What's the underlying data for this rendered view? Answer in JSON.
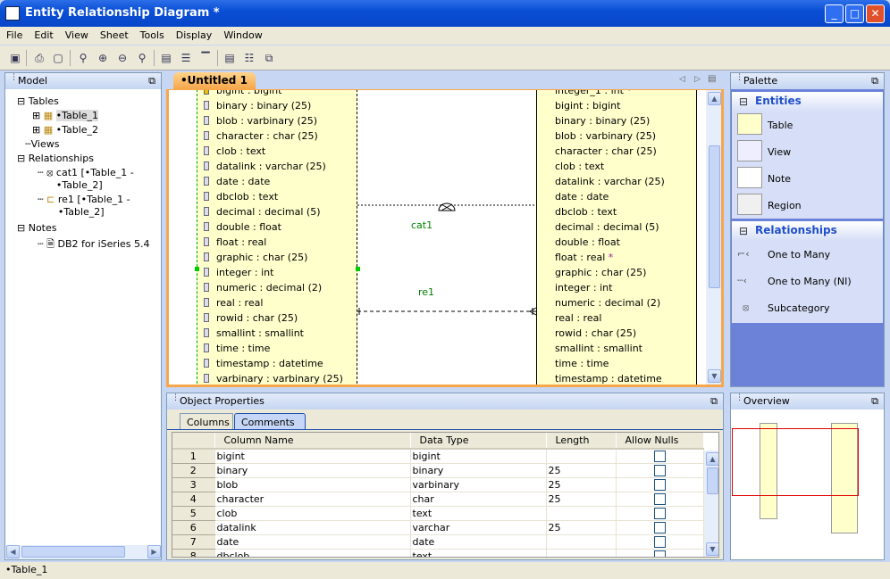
{
  "window": {
    "title": "Entity Relationship Diagram *",
    "minimize": "_",
    "maximize": "□",
    "close": "✕"
  },
  "menu": [
    "File",
    "Edit",
    "View",
    "Sheet",
    "Tools",
    "Display",
    "Window"
  ],
  "toolbar": [
    "save-icon",
    "print-icon",
    "page-setup-icon",
    "zoom-icon",
    "zoom-in-icon",
    "zoom-out-icon",
    "zoom-fit-icon",
    "table-view-icon",
    "table-list-icon",
    "table-header-icon",
    "properties-icon",
    "layout-icon",
    "export-icon"
  ],
  "model": {
    "title": "Model",
    "tree": {
      "tables": "Tables",
      "table1": "•Table_1",
      "table2": "•Table_2",
      "views": "Views",
      "relationships": "Relationships",
      "rel1": "cat1 [•Table_1 - •Table_2]",
      "rel2": "re1 [•Table_1 - •Table_2]",
      "notes": "Notes",
      "note1": "DB2 for iSeries 5.4"
    }
  },
  "editor": {
    "tab": "•Untitled 1",
    "left_table": [
      "bigint : bigint",
      "binary : binary (25)",
      "blob : varbinary (25)",
      "character : char (25)",
      "clob : text",
      "datalink : varchar (25)",
      "date : date",
      "dbclob : text",
      "decimal : decimal (5)",
      "double : float",
      "float : real",
      "graphic : char (25)",
      "integer : int",
      "numeric : decimal (2)",
      "real : real",
      "rowid : char (25)",
      "smallint : smallint",
      "time : time",
      "timestamp : datetime",
      "varbinary : varbinary (25)"
    ],
    "right_table": [
      {
        "t": "integer_1 : int",
        "s": "*"
      },
      {
        "t": "bigint : bigint"
      },
      {
        "t": "binary : binary (25)"
      },
      {
        "t": "blob : varbinary (25)"
      },
      {
        "t": "character : char (25)"
      },
      {
        "t": "clob : text"
      },
      {
        "t": "datalink : varchar (25)"
      },
      {
        "t": "date : date"
      },
      {
        "t": "dbclob : text"
      },
      {
        "t": "decimal : decimal (5)"
      },
      {
        "t": "double : float"
      },
      {
        "t": "float : real",
        "s": "*"
      },
      {
        "t": "graphic : char (25)"
      },
      {
        "t": "integer : int"
      },
      {
        "t": "numeric : decimal (2)"
      },
      {
        "t": "real : real"
      },
      {
        "t": "rowid : char (25)"
      },
      {
        "t": "smallint : smallint"
      },
      {
        "t": "time : time"
      },
      {
        "t": "timestamp : datetime"
      }
    ],
    "rel_labels": {
      "cat1": "cat1",
      "re1": "re1"
    }
  },
  "properties": {
    "title": "Object Properties",
    "tabs": [
      "Columns",
      "Comments"
    ],
    "headers": [
      "Column Name",
      "Data Type",
      "Length",
      "Allow Nulls"
    ],
    "rows": [
      [
        "1",
        "bigint",
        "bigint",
        ""
      ],
      [
        "2",
        "binary",
        "binary",
        "25"
      ],
      [
        "3",
        "blob",
        "varbinary",
        "25"
      ],
      [
        "4",
        "character",
        "char",
        "25"
      ],
      [
        "5",
        "clob",
        "text",
        ""
      ],
      [
        "6",
        "datalink",
        "varchar",
        "25"
      ],
      [
        "7",
        "date",
        "date",
        ""
      ],
      [
        "8",
        "dbclob",
        "text",
        ""
      ]
    ]
  },
  "palette": {
    "title": "Palette",
    "entities": "Entities",
    "entity_items": [
      "Table",
      "View",
      "Note",
      "Region"
    ],
    "relationships": "Relationships",
    "rel_items": [
      "One to Many",
      "One to Many (NI)",
      "Subcategory"
    ]
  },
  "overview": {
    "title": "Overview"
  },
  "status": "•Table_1",
  "colors": {
    "titlebar": "#0a4fd6",
    "table_fill": "#ffffcc",
    "selection_border": "#f0a040",
    "rel_green": "#008000",
    "overview_frame": "#e00000"
  }
}
